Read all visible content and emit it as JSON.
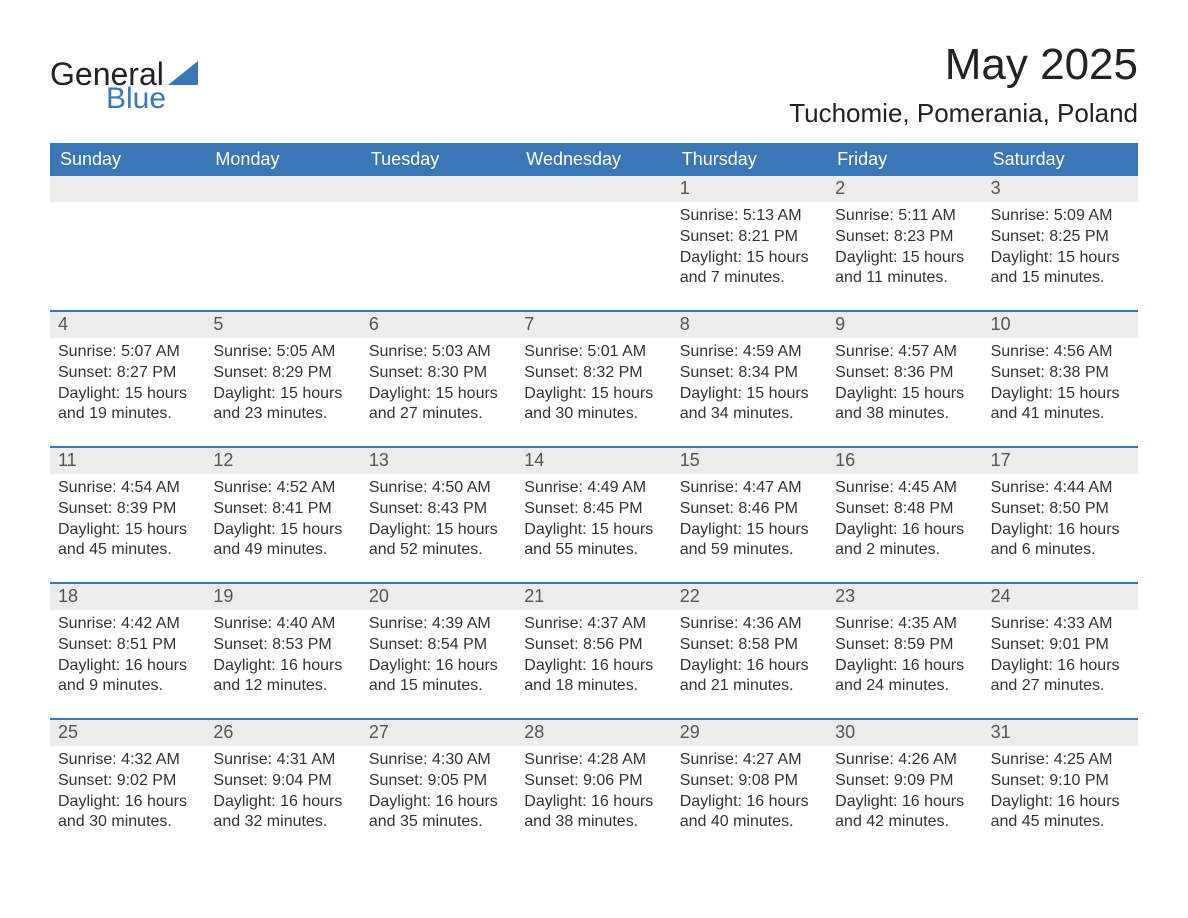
{
  "brand": {
    "word1": "General",
    "word2": "Blue",
    "accent_color": "#3a77b7"
  },
  "title": {
    "month": "May 2025",
    "location": "Tuchomie, Pomerania, Poland"
  },
  "colors": {
    "header_bg": "#3a77b7",
    "header_fg": "#ffffff",
    "strip_bg": "#ececec",
    "strip_fg": "#555555",
    "text": "#333333",
    "rule": "#3a77b7",
    "page_bg": "#ffffff"
  },
  "dow": [
    "Sunday",
    "Monday",
    "Tuesday",
    "Wednesday",
    "Thursday",
    "Friday",
    "Saturday"
  ],
  "weeks": [
    {
      "nums": [
        "",
        "",
        "",
        "",
        "1",
        "2",
        "3"
      ],
      "cells": [
        null,
        null,
        null,
        null,
        {
          "sr": "Sunrise: 5:13 AM",
          "ss": "Sunset: 8:21 PM",
          "d1": "Daylight: 15 hours",
          "d2": "and 7 minutes."
        },
        {
          "sr": "Sunrise: 5:11 AM",
          "ss": "Sunset: 8:23 PM",
          "d1": "Daylight: 15 hours",
          "d2": "and 11 minutes."
        },
        {
          "sr": "Sunrise: 5:09 AM",
          "ss": "Sunset: 8:25 PM",
          "d1": "Daylight: 15 hours",
          "d2": "and 15 minutes."
        }
      ]
    },
    {
      "nums": [
        "4",
        "5",
        "6",
        "7",
        "8",
        "9",
        "10"
      ],
      "cells": [
        {
          "sr": "Sunrise: 5:07 AM",
          "ss": "Sunset: 8:27 PM",
          "d1": "Daylight: 15 hours",
          "d2": "and 19 minutes."
        },
        {
          "sr": "Sunrise: 5:05 AM",
          "ss": "Sunset: 8:29 PM",
          "d1": "Daylight: 15 hours",
          "d2": "and 23 minutes."
        },
        {
          "sr": "Sunrise: 5:03 AM",
          "ss": "Sunset: 8:30 PM",
          "d1": "Daylight: 15 hours",
          "d2": "and 27 minutes."
        },
        {
          "sr": "Sunrise: 5:01 AM",
          "ss": "Sunset: 8:32 PM",
          "d1": "Daylight: 15 hours",
          "d2": "and 30 minutes."
        },
        {
          "sr": "Sunrise: 4:59 AM",
          "ss": "Sunset: 8:34 PM",
          "d1": "Daylight: 15 hours",
          "d2": "and 34 minutes."
        },
        {
          "sr": "Sunrise: 4:57 AM",
          "ss": "Sunset: 8:36 PM",
          "d1": "Daylight: 15 hours",
          "d2": "and 38 minutes."
        },
        {
          "sr": "Sunrise: 4:56 AM",
          "ss": "Sunset: 8:38 PM",
          "d1": "Daylight: 15 hours",
          "d2": "and 41 minutes."
        }
      ]
    },
    {
      "nums": [
        "11",
        "12",
        "13",
        "14",
        "15",
        "16",
        "17"
      ],
      "cells": [
        {
          "sr": "Sunrise: 4:54 AM",
          "ss": "Sunset: 8:39 PM",
          "d1": "Daylight: 15 hours",
          "d2": "and 45 minutes."
        },
        {
          "sr": "Sunrise: 4:52 AM",
          "ss": "Sunset: 8:41 PM",
          "d1": "Daylight: 15 hours",
          "d2": "and 49 minutes."
        },
        {
          "sr": "Sunrise: 4:50 AM",
          "ss": "Sunset: 8:43 PM",
          "d1": "Daylight: 15 hours",
          "d2": "and 52 minutes."
        },
        {
          "sr": "Sunrise: 4:49 AM",
          "ss": "Sunset: 8:45 PM",
          "d1": "Daylight: 15 hours",
          "d2": "and 55 minutes."
        },
        {
          "sr": "Sunrise: 4:47 AM",
          "ss": "Sunset: 8:46 PM",
          "d1": "Daylight: 15 hours",
          "d2": "and 59 minutes."
        },
        {
          "sr": "Sunrise: 4:45 AM",
          "ss": "Sunset: 8:48 PM",
          "d1": "Daylight: 16 hours",
          "d2": "and 2 minutes."
        },
        {
          "sr": "Sunrise: 4:44 AM",
          "ss": "Sunset: 8:50 PM",
          "d1": "Daylight: 16 hours",
          "d2": "and 6 minutes."
        }
      ]
    },
    {
      "nums": [
        "18",
        "19",
        "20",
        "21",
        "22",
        "23",
        "24"
      ],
      "cells": [
        {
          "sr": "Sunrise: 4:42 AM",
          "ss": "Sunset: 8:51 PM",
          "d1": "Daylight: 16 hours",
          "d2": "and 9 minutes."
        },
        {
          "sr": "Sunrise: 4:40 AM",
          "ss": "Sunset: 8:53 PM",
          "d1": "Daylight: 16 hours",
          "d2": "and 12 minutes."
        },
        {
          "sr": "Sunrise: 4:39 AM",
          "ss": "Sunset: 8:54 PM",
          "d1": "Daylight: 16 hours",
          "d2": "and 15 minutes."
        },
        {
          "sr": "Sunrise: 4:37 AM",
          "ss": "Sunset: 8:56 PM",
          "d1": "Daylight: 16 hours",
          "d2": "and 18 minutes."
        },
        {
          "sr": "Sunrise: 4:36 AM",
          "ss": "Sunset: 8:58 PM",
          "d1": "Daylight: 16 hours",
          "d2": "and 21 minutes."
        },
        {
          "sr": "Sunrise: 4:35 AM",
          "ss": "Sunset: 8:59 PM",
          "d1": "Daylight: 16 hours",
          "d2": "and 24 minutes."
        },
        {
          "sr": "Sunrise: 4:33 AM",
          "ss": "Sunset: 9:01 PM",
          "d1": "Daylight: 16 hours",
          "d2": "and 27 minutes."
        }
      ]
    },
    {
      "nums": [
        "25",
        "26",
        "27",
        "28",
        "29",
        "30",
        "31"
      ],
      "cells": [
        {
          "sr": "Sunrise: 4:32 AM",
          "ss": "Sunset: 9:02 PM",
          "d1": "Daylight: 16 hours",
          "d2": "and 30 minutes."
        },
        {
          "sr": "Sunrise: 4:31 AM",
          "ss": "Sunset: 9:04 PM",
          "d1": "Daylight: 16 hours",
          "d2": "and 32 minutes."
        },
        {
          "sr": "Sunrise: 4:30 AM",
          "ss": "Sunset: 9:05 PM",
          "d1": "Daylight: 16 hours",
          "d2": "and 35 minutes."
        },
        {
          "sr": "Sunrise: 4:28 AM",
          "ss": "Sunset: 9:06 PM",
          "d1": "Daylight: 16 hours",
          "d2": "and 38 minutes."
        },
        {
          "sr": "Sunrise: 4:27 AM",
          "ss": "Sunset: 9:08 PM",
          "d1": "Daylight: 16 hours",
          "d2": "and 40 minutes."
        },
        {
          "sr": "Sunrise: 4:26 AM",
          "ss": "Sunset: 9:09 PM",
          "d1": "Daylight: 16 hours",
          "d2": "and 42 minutes."
        },
        {
          "sr": "Sunrise: 4:25 AM",
          "ss": "Sunset: 9:10 PM",
          "d1": "Daylight: 16 hours",
          "d2": "and 45 minutes."
        }
      ]
    }
  ]
}
